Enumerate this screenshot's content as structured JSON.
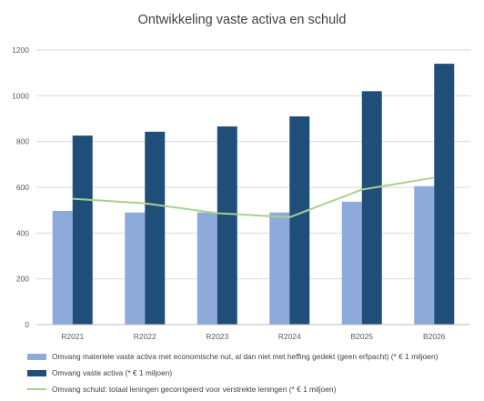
{
  "chart_data": {
    "type": "bar",
    "title": "Ontwikkeling vaste activa en schuld",
    "categories": [
      "R2021",
      "R2022",
      "R2023",
      "R2024",
      "B2025",
      "B2026"
    ],
    "ylim": [
      0,
      1200
    ],
    "yticks": [
      0,
      200,
      400,
      600,
      800,
      1000,
      1200
    ],
    "grid": true,
    "legend_position": "bottom",
    "series": [
      {
        "name": "Omvang materiele vaste activa met economische nut, al dan niet met heffing gedekt (geen erfpacht) (* € 1 miljoen)",
        "type": "bar",
        "color": "#8eaadb",
        "values": [
          497,
          490,
          490,
          490,
          537,
          605
        ]
      },
      {
        "name": "Omvang vaste activa (* € 1 miljoen)",
        "type": "bar",
        "color": "#1f4e79",
        "values": [
          826,
          843,
          866,
          910,
          1020,
          1140
        ]
      },
      {
        "name": "Omvang schuld: totaal leningen gecorrigeerd voor verstrekte leningen (* € 1 miljoen)",
        "type": "line",
        "color": "#a9d18e",
        "values": [
          550,
          530,
          487,
          469,
          590,
          642
        ]
      }
    ]
  }
}
